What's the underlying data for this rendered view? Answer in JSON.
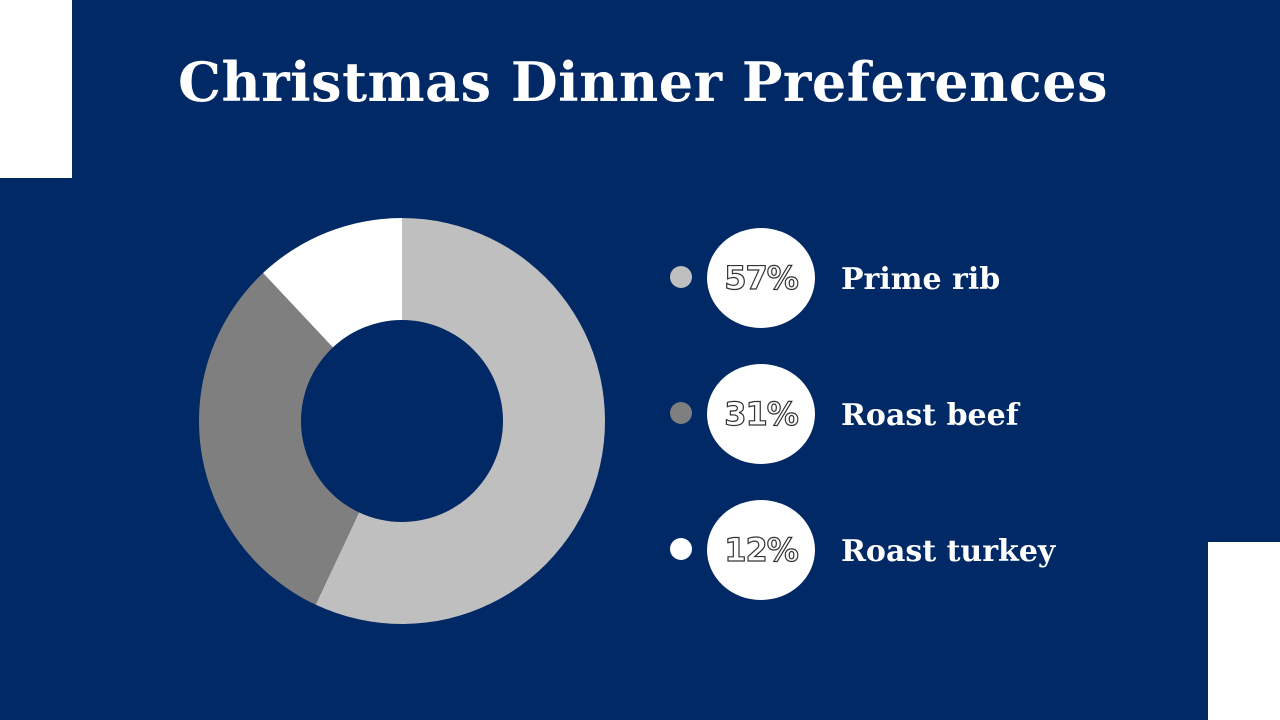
{
  "slide": {
    "title": "Christmas Dinner Preferences",
    "background_color": "#002966",
    "accent_color": "#ffffff"
  },
  "chart_data": {
    "type": "pie",
    "style": "donut",
    "title": "Christmas Dinner Preferences",
    "categories": [
      "Prime rib",
      "Roast beef",
      "Roast turkey"
    ],
    "values": [
      57,
      31,
      12
    ],
    "labels": [
      "57%",
      "31%",
      "12%"
    ],
    "colors": [
      "#bfbfbf",
      "#7f7f7f",
      "#ffffff"
    ],
    "legend_position": "right"
  }
}
